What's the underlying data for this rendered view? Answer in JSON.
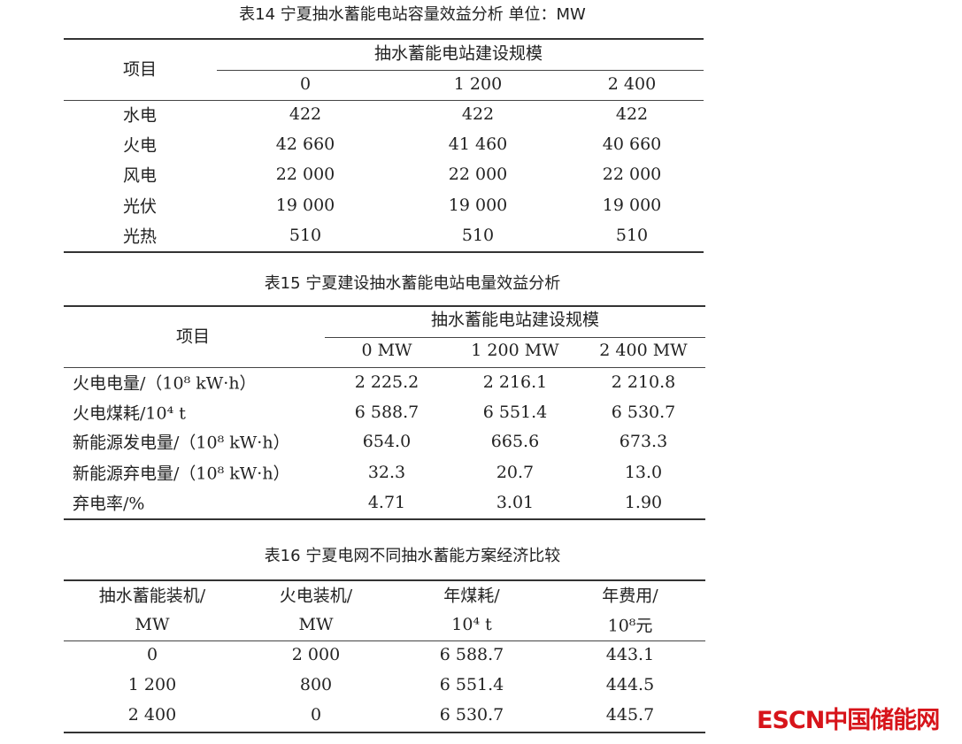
{
  "table14": {
    "caption": "表14  宁夏抽水蓄能电站容量效益分析      单位：MW",
    "header_item": "项目",
    "header_group": "抽水蓄能电站建设规模",
    "columns": [
      "0",
      "1 200",
      "2 400"
    ],
    "rows": [
      {
        "label": "水电",
        "values": [
          "422",
          "422",
          "422"
        ]
      },
      {
        "label": "火电",
        "values": [
          "42 660",
          "41 460",
          "40 660"
        ]
      },
      {
        "label": "风电",
        "values": [
          "22 000",
          "22 000",
          "22 000"
        ]
      },
      {
        "label": "光伏",
        "values": [
          "19 000",
          "19 000",
          "19 000"
        ]
      },
      {
        "label": "光热",
        "values": [
          "510",
          "510",
          "510"
        ]
      }
    ]
  },
  "table15": {
    "caption": "表15  宁夏建设抽水蓄能电站电量效益分析",
    "header_item": "项目",
    "header_group": "抽水蓄能电站建设规模",
    "columns": [
      "0 MW",
      "1 200 MW",
      "2 400 MW"
    ],
    "rows": [
      {
        "label": "火电电量/（10⁸ kW·h）",
        "values": [
          "2 225.2",
          "2 216.1",
          "2 210.8"
        ]
      },
      {
        "label": "火电煤耗/10⁴ t",
        "values": [
          "6 588.7",
          "6 551.4",
          "6 530.7"
        ]
      },
      {
        "label": "新能源发电量/（10⁸ kW·h）",
        "values": [
          "654.0",
          "665.6",
          "673.3"
        ]
      },
      {
        "label": "新能源弃电量/（10⁸ kW·h）",
        "values": [
          "32.3",
          "20.7",
          "13.0"
        ]
      },
      {
        "label": "弃电率/%",
        "values": [
          "4.71",
          "3.01",
          "1.90"
        ]
      }
    ]
  },
  "table16": {
    "caption": "表16  宁夏电网不同抽水蓄能方案经济比较",
    "headers_line1": [
      "抽水蓄能装机/",
      "火电装机/",
      "年煤耗/",
      "年费用/"
    ],
    "headers_line2": [
      "MW",
      "MW",
      "10⁴ t",
      "10⁸元"
    ],
    "rows": [
      [
        "0",
        "2 000",
        "6 588.7",
        "443.1"
      ],
      [
        "1 200",
        "800",
        "6 551.4",
        "444.5"
      ],
      [
        "2 400",
        "0",
        "6 530.7",
        "445.7"
      ]
    ]
  },
  "watermark": "ESCN中国储能网",
  "colors": {
    "watermark": "#d7141a"
  }
}
